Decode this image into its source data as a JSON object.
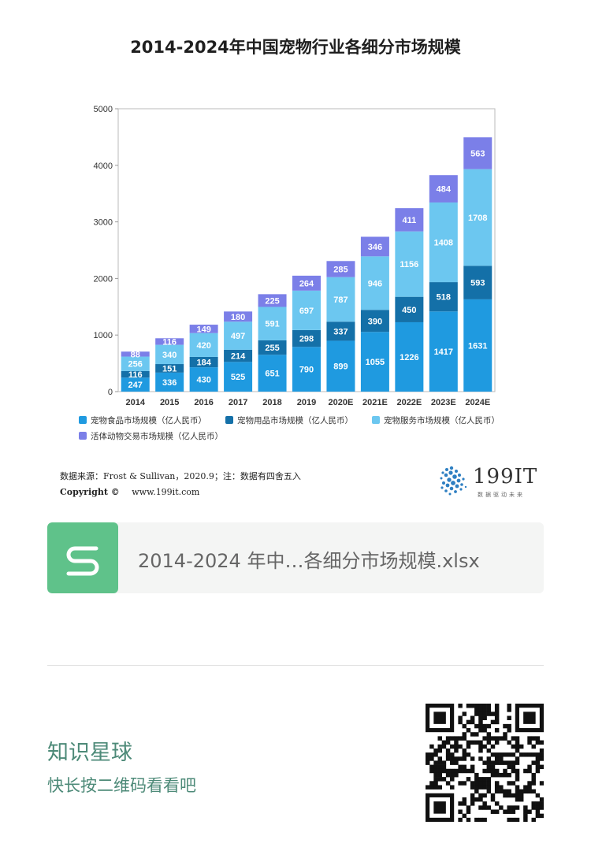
{
  "title": "2014-2024年中国宠物行业各细分市场规模",
  "chart_data": {
    "type": "bar",
    "stacked": true,
    "categories": [
      "2014",
      "2015",
      "2016",
      "2017",
      "2018",
      "2019",
      "2020E",
      "2021E",
      "2022E",
      "2023E",
      "2024E"
    ],
    "series": [
      {
        "name": "宠物食品市场规模（亿人民币）",
        "color": "#1f9ae0",
        "values": [
          247,
          336,
          430,
          525,
          651,
          790,
          899,
          1055,
          1226,
          1417,
          1631
        ]
      },
      {
        "name": "宠物用品市场规模（亿人民币）",
        "color": "#1470a8",
        "values": [
          116,
          151,
          184,
          214,
          255,
          298,
          337,
          390,
          450,
          518,
          593
        ]
      },
      {
        "name": "宠物服务市场规模（亿人民币）",
        "color": "#6cc7f0",
        "values": [
          256,
          340,
          420,
          497,
          591,
          697,
          787,
          946,
          1156,
          1408,
          1708
        ]
      },
      {
        "name": "活体动物交易市场规模（亿人民币）",
        "color": "#7b7fe8",
        "values": [
          88,
          116,
          149,
          180,
          225,
          264,
          285,
          346,
          411,
          484,
          563
        ]
      }
    ],
    "ylim": [
      0,
      5000
    ],
    "yticks": [
      "0",
      "1000",
      "2000",
      "3000",
      "4000",
      "5000"
    ],
    "grid": false,
    "legend_position": "bottom-left"
  },
  "source": "数据来源：Frost & Sullivan，2020.9；注：数据有四舍五入",
  "copyright_label": "Copyright ©",
  "copyright_url": "www.199it.com",
  "logo_text": "199IT",
  "logo_tagline": "数据驱动未来",
  "file_name": "2014-2024 年中…各细分市场规模.xlsx",
  "footer_title": "知识星球",
  "footer_sub": "快长按二维码看看吧"
}
